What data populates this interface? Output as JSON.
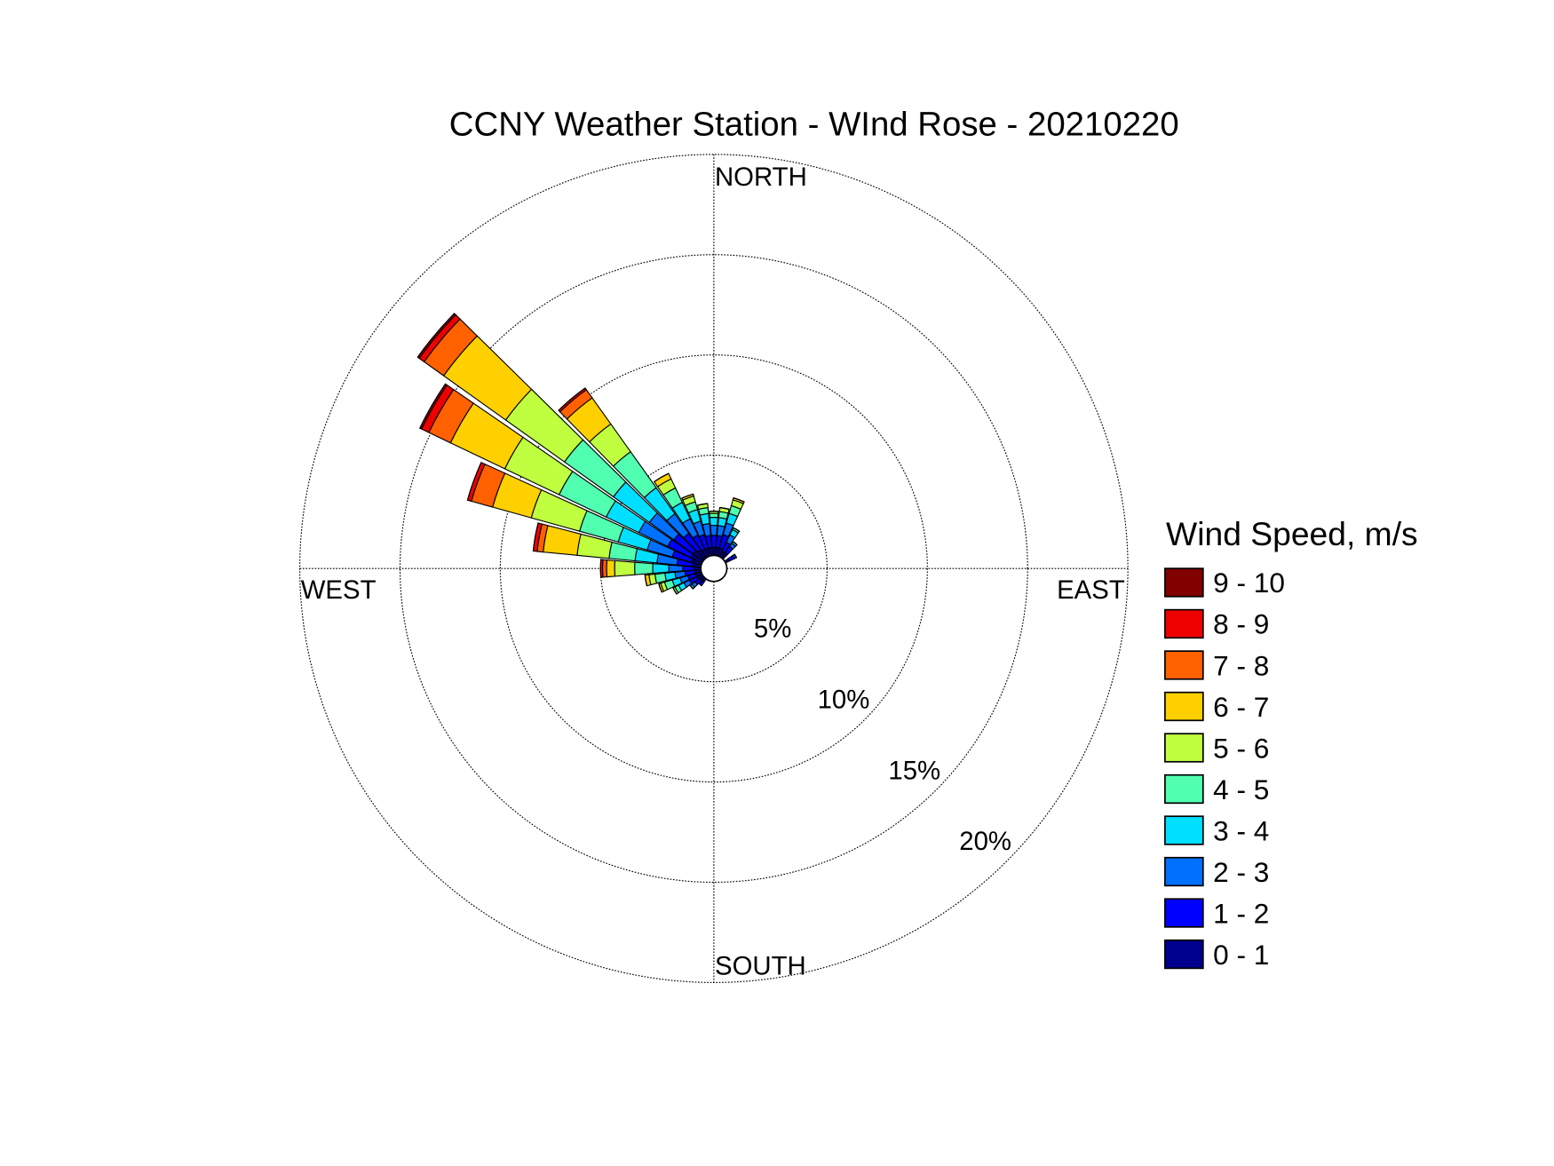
{
  "chart_data": {
    "type": "windrose",
    "title": "CCNY Weather Station - WInd Rose - 20210220",
    "compass": {
      "north": "NORTH",
      "east": "EAST",
      "south": "SOUTH",
      "west": "WEST"
    },
    "legend_title": "Wind Speed, m/s",
    "directions": [
      220,
      230,
      240,
      250,
      260,
      270,
      280,
      290,
      300,
      310,
      320,
      330,
      340,
      350,
      0,
      10,
      20,
      30,
      40,
      60
    ],
    "rlim": [
      0,
      20
    ],
    "rticks": [
      {
        "value": 5,
        "label": "5%"
      },
      {
        "value": 10,
        "label": "10%"
      },
      {
        "value": 15,
        "label": "15%"
      },
      {
        "value": 20,
        "label": "20%"
      }
    ],
    "series": [
      {
        "name": "0 - 1",
        "color": "#00008f",
        "values": [
          0.2,
          0.2,
          0.3,
          0.3,
          0.3,
          0.3,
          0.4,
          0.5,
          0.6,
          0.6,
          0.5,
          0.4,
          0.4,
          0.4,
          0.4,
          0.4,
          0.4,
          0.3,
          0.3,
          0.2
        ]
      },
      {
        "name": "1 - 2",
        "color": "#0000ff",
        "values": [
          0.2,
          0.3,
          0.4,
          0.4,
          0.5,
          0.6,
          0.8,
          1.0,
          1.3,
          1.2,
          1.0,
          0.8,
          0.7,
          0.6,
          0.6,
          0.6,
          0.7,
          0.5,
          0.4,
          0.3
        ]
      },
      {
        "name": "2 - 3",
        "color": "#0070ff",
        "values": [
          0,
          0.2,
          0.3,
          0.4,
          0.5,
          0.7,
          1.0,
          1.3,
          1.6,
          1.5,
          1.2,
          0.9,
          0.7,
          0.6,
          0.5,
          0.5,
          0.6,
          0.4,
          0.2,
          0.1
        ]
      },
      {
        "name": "3 - 4",
        "color": "#00dfff",
        "values": [
          0,
          0.1,
          0.3,
          0.4,
          0.5,
          0.8,
          1.1,
          1.5,
          1.8,
          2.2,
          1.6,
          0.9,
          0.6,
          0.5,
          0.4,
          0.4,
          0.5,
          0.3,
          0.1,
          0
        ]
      },
      {
        "name": "4 - 5",
        "color": "#50ffaf",
        "values": [
          0,
          0,
          0.2,
          0.4,
          0.5,
          0.9,
          1.3,
          2.0,
          2.6,
          3.0,
          2.2,
          0.8,
          0.4,
          0.3,
          0.2,
          0.3,
          0.4,
          0.1,
          0,
          0
        ]
      },
      {
        "name": "5 - 6",
        "color": "#bfff40",
        "values": [
          0,
          0,
          0.1,
          0.2,
          0.3,
          1.0,
          1.6,
          2.5,
          3.0,
          3.6,
          1.7,
          0.5,
          0.3,
          0.2,
          0.1,
          0.2,
          0.3,
          0,
          0,
          0
        ]
      },
      {
        "name": "6 - 7",
        "color": "#ffd000",
        "values": [
          0,
          0,
          0,
          0.1,
          0.2,
          0.4,
          1.7,
          2.0,
          3.0,
          3.8,
          1.6,
          0.3,
          0.1,
          0,
          0,
          0,
          0.1,
          0,
          0,
          0
        ]
      },
      {
        "name": "7 - 8",
        "color": "#ff6000",
        "values": [
          0,
          0,
          0,
          0,
          0,
          0.2,
          0.3,
          1.1,
          1.2,
          1.2,
          0.5,
          0,
          0,
          0,
          0,
          0,
          0,
          0,
          0,
          0
        ]
      },
      {
        "name": "8 - 9",
        "color": "#ef0000",
        "values": [
          0,
          0,
          0,
          0,
          0,
          0.1,
          0.2,
          0.2,
          0.4,
          0.3,
          0.1,
          0,
          0,
          0,
          0,
          0,
          0,
          0,
          0,
          0
        ]
      },
      {
        "name": "9 - 10",
        "color": "#800000",
        "values": [
          0,
          0,
          0,
          0,
          0,
          0,
          0,
          0,
          0.1,
          0.1,
          0,
          0,
          0,
          0,
          0,
          0,
          0,
          0,
          0,
          0
        ]
      }
    ],
    "grid": true
  }
}
